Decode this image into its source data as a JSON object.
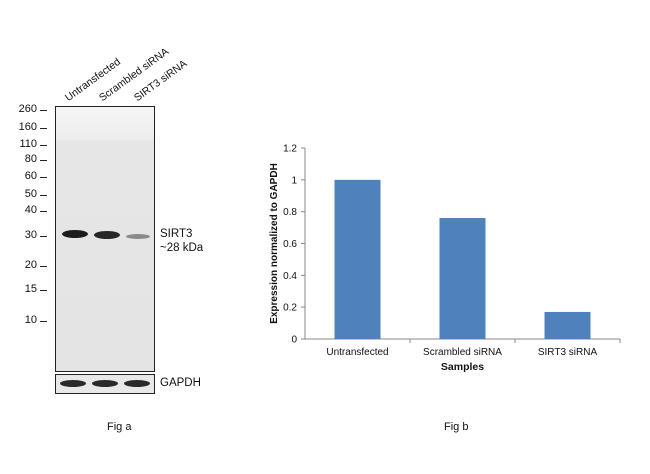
{
  "fig_a": {
    "lanes": [
      "Untransfected",
      "Scrambled siRNA",
      "SIRT3 siRNA"
    ],
    "mw_markers": [
      "260",
      "160",
      "110",
      "80",
      "60",
      "50",
      "40",
      "30",
      "20",
      "15",
      "10"
    ],
    "target_label": "SIRT3",
    "target_size": "~28 kDa",
    "loading_control": "GAPDH",
    "caption": "Fig a"
  },
  "fig_b": {
    "caption": "Fig b"
  },
  "chart_data": {
    "type": "bar",
    "categories": [
      "Untransfected",
      "Scrambled siRNA",
      "SIRT3 siRNA"
    ],
    "values": [
      1.0,
      0.76,
      0.17
    ],
    "xlabel": "Samples",
    "ylabel": "Expression normalized to GAPDH",
    "ylim": [
      0,
      1.2
    ],
    "yticks": [
      "0",
      "0.2",
      "0.4",
      "0.6",
      "0.8",
      "1",
      "1.2"
    ],
    "bar_color": "#4f81bd",
    "grid": false
  }
}
